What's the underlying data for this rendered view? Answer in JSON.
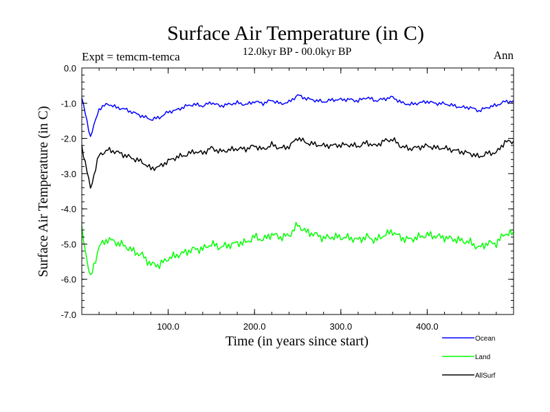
{
  "chart_data": {
    "type": "line",
    "title": "Surface Air Temperature (in C)",
    "subtitle": "12.0kyr BP - 00.0kyr BP",
    "experiment": "Expt = temcm-temca",
    "season": "Ann",
    "xlabel": "Time (in years since start)",
    "ylabel": "Surface Air Temperature (in C)",
    "xlim": [
      0,
      500
    ],
    "ylim": [
      -7.0,
      0.0
    ],
    "xticks": [
      100,
      200,
      300,
      400
    ],
    "xtick_labels": [
      "100.0",
      "200.0",
      "300.0",
      "400.0"
    ],
    "yticks": [
      0,
      -1,
      -2,
      -3,
      -4,
      -5,
      -6,
      -7
    ],
    "ytick_labels": [
      "0.0",
      "-1.0",
      "-2.0",
      "-3.0",
      "-4.0",
      "-5.0",
      "-6.0",
      "-7.0"
    ],
    "grid": false,
    "legend_position": "bottom-right",
    "x_step": 10,
    "series": [
      {
        "name": "Ocean",
        "color": "#0000ff",
        "values": [
          -0.85,
          -1.95,
          -1.15,
          -1.0,
          -1.1,
          -1.15,
          -1.25,
          -1.35,
          -1.45,
          -1.4,
          -1.25,
          -1.2,
          -1.1,
          -1.05,
          -1.1,
          -1.0,
          -1.1,
          -1.05,
          -1.0,
          -1.05,
          -0.95,
          -1.0,
          -0.9,
          -1.0,
          -0.95,
          -0.75,
          -0.85,
          -0.9,
          -0.95,
          -0.9,
          -0.9,
          -0.9,
          -0.95,
          -0.85,
          -0.95,
          -0.9,
          -0.85,
          -1.0,
          -1.05,
          -1.0,
          -0.95,
          -1.0,
          -1.0,
          -1.05,
          -1.1,
          -1.1,
          -1.2,
          -1.1,
          -1.05,
          -0.95
        ]
      },
      {
        "name": "Land",
        "color": "#00ff00",
        "values": [
          -4.6,
          -6.0,
          -5.1,
          -4.9,
          -5.0,
          -5.1,
          -5.25,
          -5.35,
          -5.6,
          -5.6,
          -5.4,
          -5.3,
          -5.2,
          -5.1,
          -5.1,
          -4.95,
          -5.05,
          -5.0,
          -4.95,
          -4.95,
          -4.8,
          -4.9,
          -4.75,
          -4.85,
          -4.8,
          -4.5,
          -4.7,
          -4.75,
          -4.85,
          -4.8,
          -4.8,
          -4.8,
          -4.85,
          -4.75,
          -4.85,
          -4.7,
          -4.6,
          -4.8,
          -4.85,
          -4.8,
          -4.75,
          -4.8,
          -4.85,
          -4.9,
          -4.95,
          -5.0,
          -5.15,
          -5.0,
          -5.0,
          -4.7
        ]
      },
      {
        "name": "AllSurf",
        "color": "#000000",
        "values": [
          -2.2,
          -3.4,
          -2.45,
          -2.3,
          -2.35,
          -2.45,
          -2.55,
          -2.65,
          -2.85,
          -2.8,
          -2.65,
          -2.55,
          -2.5,
          -2.4,
          -2.45,
          -2.3,
          -2.4,
          -2.35,
          -2.3,
          -2.3,
          -2.2,
          -2.3,
          -2.15,
          -2.25,
          -2.2,
          -1.95,
          -2.1,
          -2.15,
          -2.2,
          -2.2,
          -2.2,
          -2.2,
          -2.25,
          -2.15,
          -2.25,
          -2.1,
          -2.05,
          -2.25,
          -2.3,
          -2.25,
          -2.2,
          -2.25,
          -2.25,
          -2.3,
          -2.35,
          -2.4,
          -2.5,
          -2.4,
          -2.4,
          -2.1
        ]
      }
    ]
  }
}
